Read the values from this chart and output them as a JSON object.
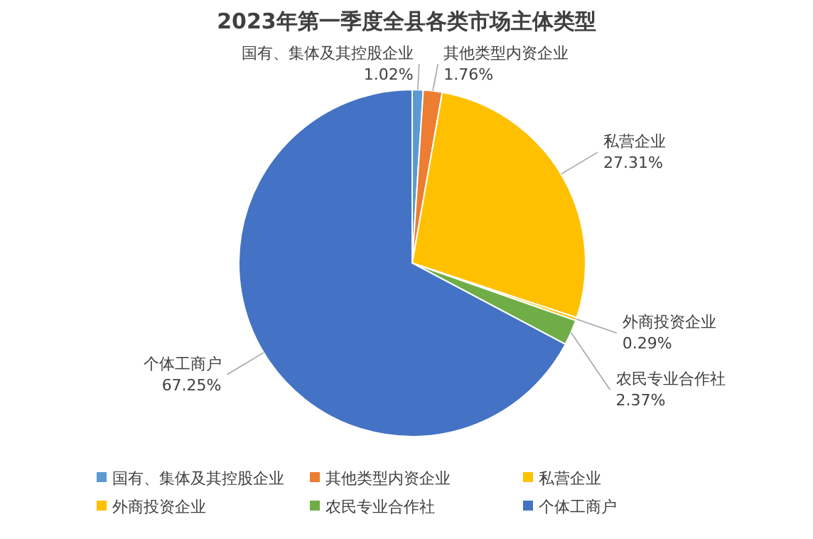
{
  "chart_data": {
    "type": "pie",
    "title": "2023年第一季度全县各类市场主体类型",
    "categories": [
      "国有、集体及其控股企业",
      "其他类型内资企业",
      "私营企业",
      "外商投资企业",
      "农民专业合作社",
      "个体工商户"
    ],
    "values": [
      1.02,
      1.76,
      27.31,
      0.29,
      2.37,
      67.25
    ],
    "colors": [
      "#5b9bd5",
      "#ed7d31",
      "#ffc000",
      "#ffc000",
      "#70ad47",
      "#4472c4"
    ],
    "value_labels": [
      "1.02%",
      "1.76%",
      "27.31%",
      "0.29%",
      "2.37%",
      "67.25%"
    ],
    "legend": "bottom"
  }
}
